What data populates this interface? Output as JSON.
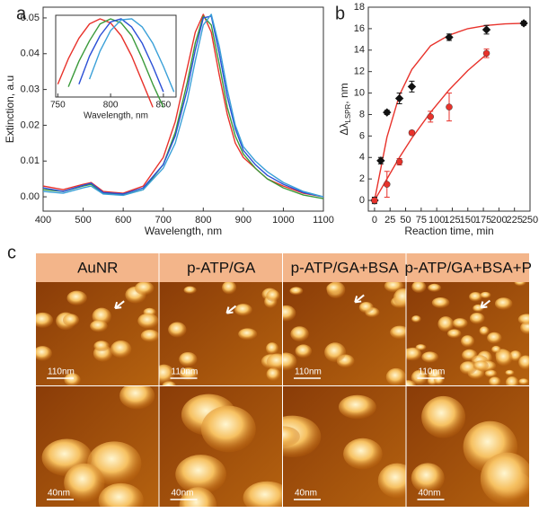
{
  "chart_data": [
    {
      "type": "line",
      "label": "a",
      "xlabel": "Wavelength, nm",
      "ylabel": "Extinction, a.u",
      "x": [
        400,
        450,
        500,
        520,
        550,
        600,
        650,
        700,
        730,
        760,
        780,
        800,
        820,
        840,
        860,
        880,
        900,
        930,
        960,
        1000,
        1050,
        1100
      ],
      "xlim": [
        400,
        1100
      ],
      "xticks": [
        400,
        500,
        600,
        700,
        800,
        900,
        1000,
        1100
      ],
      "ylim": [
        -0.004,
        0.053
      ],
      "yticks": [
        {
          "value": 0,
          "label": "0.00"
        },
        0.01,
        0.02,
        0.03,
        0.04,
        0.05
      ],
      "series": [
        {
          "color": "#e8322b",
          "values": [
            0.003,
            0.002,
            0.0035,
            0.004,
            0.0015,
            0.001,
            0.003,
            0.011,
            0.021,
            0.036,
            0.046,
            0.051,
            0.046,
            0.034,
            0.023,
            0.015,
            0.011,
            0.008,
            0.005,
            0.003,
            0.001,
            0.0
          ]
        },
        {
          "color": "#3a9a3a",
          "values": [
            0.002,
            0.0015,
            0.003,
            0.0035,
            0.001,
            0.0005,
            0.002,
            0.009,
            0.018,
            0.032,
            0.043,
            0.0505,
            0.048,
            0.037,
            0.025,
            0.017,
            0.012,
            0.008,
            0.005,
            0.0025,
            0.0005,
            -0.0005
          ]
        },
        {
          "color": "#2b4fd6",
          "values": [
            0.0025,
            0.0015,
            0.0032,
            0.0038,
            0.0012,
            0.0008,
            0.0025,
            0.009,
            0.017,
            0.03,
            0.041,
            0.05,
            0.0505,
            0.04,
            0.028,
            0.019,
            0.013,
            0.009,
            0.006,
            0.0035,
            0.0012,
            0.0
          ]
        },
        {
          "color": "#3aa0d8",
          "values": [
            0.0015,
            0.001,
            0.0025,
            0.003,
            0.0008,
            0.0004,
            0.002,
            0.008,
            0.015,
            0.027,
            0.038,
            0.048,
            0.051,
            0.042,
            0.03,
            0.02,
            0.014,
            0.01,
            0.007,
            0.004,
            0.0015,
            0.0
          ]
        }
      ]
    },
    {
      "type": "line",
      "inset": true,
      "xlabel": "Wavelength, nm",
      "x": [
        750,
        760,
        770,
        780,
        790,
        800,
        810,
        820,
        830,
        840,
        850,
        860
      ],
      "xlim": [
        748,
        862
      ],
      "xticks": [
        750,
        800,
        850
      ],
      "ylim": [
        0.036,
        0.052
      ],
      "series": [
        {
          "color": "#e8322b",
          "values": [
            0.0385,
            0.0435,
            0.0475,
            0.0503,
            0.0513,
            0.0505,
            0.048,
            0.044,
            0.039,
            0.034,
            null,
            null
          ]
        },
        {
          "color": "#3a9a3a",
          "values": [
            null,
            0.038,
            0.043,
            0.047,
            0.0503,
            0.0513,
            0.0505,
            0.048,
            0.0435,
            0.0385,
            0.034,
            null
          ]
        },
        {
          "color": "#2b4fd6",
          "values": [
            null,
            null,
            0.0385,
            0.044,
            0.048,
            0.0507,
            0.0513,
            0.0497,
            0.0465,
            0.042,
            0.037,
            null
          ]
        },
        {
          "color": "#3aa0d8",
          "values": [
            null,
            null,
            null,
            0.0395,
            0.045,
            0.049,
            0.0511,
            0.0513,
            0.0497,
            0.0465,
            0.042,
            0.037
          ]
        }
      ]
    },
    {
      "type": "scatter",
      "label": "b",
      "xlabel": "Reaction time, min",
      "ylabel": "Δλ",
      "ylabel_sub": "LSPR",
      "ylabel_unit": ", nm",
      "xlim": [
        -10,
        250
      ],
      "xticks": [
        0,
        25,
        50,
        75,
        100,
        125,
        150,
        175,
        200,
        225,
        250
      ],
      "ylim": [
        -1,
        18
      ],
      "yticks": [
        0,
        2,
        4,
        6,
        8,
        10,
        12,
        14,
        16,
        18
      ],
      "series": [
        {
          "color": "#111111",
          "marker": "diamond",
          "x": [
            0,
            10,
            20,
            40,
            60,
            120,
            180,
            240
          ],
          "values": [
            0,
            3.7,
            8.2,
            9.5,
            10.6,
            15.2,
            15.9,
            16.5
          ],
          "errors": [
            0.3,
            0.3,
            0.2,
            0.5,
            0.5,
            0.3,
            0.4,
            0.2
          ]
        },
        {
          "color": "#e8322b",
          "marker": "circle",
          "x": [
            0,
            20,
            40,
            60,
            90,
            120,
            180
          ],
          "values": [
            0,
            1.5,
            3.6,
            6.3,
            7.8,
            8.7,
            13.7
          ],
          "errors": [
            0.2,
            1.2,
            0.3,
            0.2,
            0.5,
            1.3,
            0.4
          ]
        }
      ],
      "fits": [
        {
          "color": "#e8322b",
          "x": [
            0,
            20,
            40,
            60,
            90,
            120,
            150,
            180,
            210,
            240
          ],
          "values": [
            0,
            5.9,
            9.8,
            12.2,
            14.4,
            15.4,
            16.0,
            16.3,
            16.45,
            16.5
          ]
        },
        {
          "color": "#e8322b",
          "x": [
            0,
            20,
            40,
            60,
            90,
            120,
            150,
            180
          ],
          "values": [
            0,
            2.0,
            4.0,
            5.8,
            8.2,
            10.3,
            12.1,
            13.6
          ]
        }
      ]
    }
  ],
  "figure_c": {
    "label": "c",
    "columns": [
      "AuNR",
      "p-ATP/GA",
      "p-ATP/GA+BSA",
      "p-ATP/GA+BSA+P"
    ],
    "scale_bars": [
      [
        "110nm",
        "110nm",
        "110nm",
        "110nm"
      ],
      [
        "40nm",
        "40nm",
        "40nm",
        "40nm"
      ]
    ]
  }
}
